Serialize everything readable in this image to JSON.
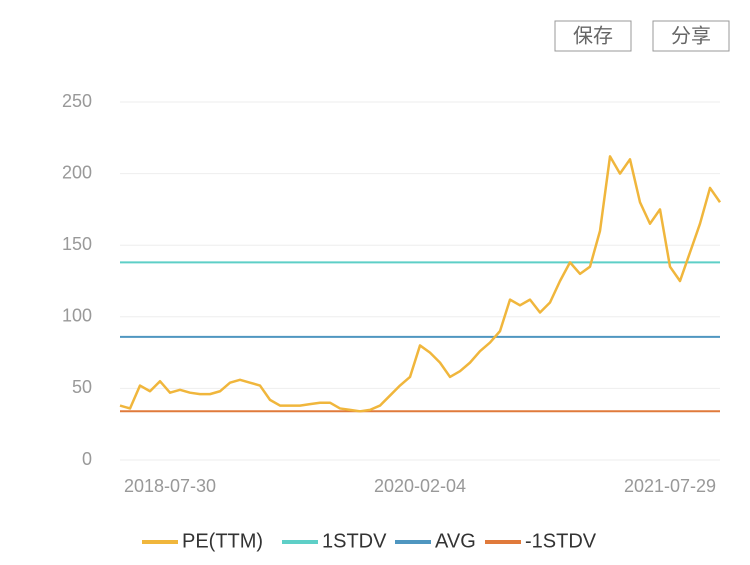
{
  "buttons": [
    "保存",
    "分享"
  ],
  "chart_data": {
    "type": "line",
    "categories": [
      null,
      null,
      null,
      null,
      null,
      "2018-07-30",
      null,
      null,
      null,
      null,
      null,
      null,
      null,
      null,
      null,
      null,
      null,
      null,
      null,
      null,
      null,
      null,
      null,
      null,
      null,
      null,
      null,
      null,
      null,
      null,
      "2020-02-04",
      null,
      null,
      null,
      null,
      null,
      null,
      null,
      null,
      null,
      null,
      null,
      null,
      null,
      null,
      null,
      null,
      null,
      null,
      null,
      null,
      null,
      null,
      null,
      null,
      "2021-07-29",
      null,
      null,
      null,
      null,
      null
    ],
    "series": [
      {
        "name": "PE(TTM)",
        "color": "#f0b63c",
        "values": [
          38,
          36,
          52,
          48,
          55,
          47,
          49,
          47,
          46,
          46,
          48,
          54,
          56,
          54,
          52,
          42,
          38,
          38,
          38,
          39,
          40,
          40,
          36,
          35,
          34,
          35,
          38,
          45,
          52,
          58,
          80,
          75,
          68,
          58,
          62,
          68,
          76,
          82,
          90,
          112,
          108,
          112,
          103,
          110,
          125,
          138,
          130,
          135,
          160,
          212,
          200,
          210,
          180,
          165,
          175,
          135,
          125,
          145,
          165,
          190,
          180
        ]
      }
    ],
    "lines": [
      {
        "name": "1STDV",
        "color": "#5ecfc7",
        "value": 138
      },
      {
        "name": "AVG",
        "color": "#4f96c0",
        "value": 86
      },
      {
        "name": "-1STDV",
        "color": "#e07a3b",
        "value": 34
      }
    ],
    "ylim": [
      0,
      250
    ],
    "yticks": [
      0,
      50,
      100,
      150,
      200,
      250
    ],
    "grid": true
  }
}
